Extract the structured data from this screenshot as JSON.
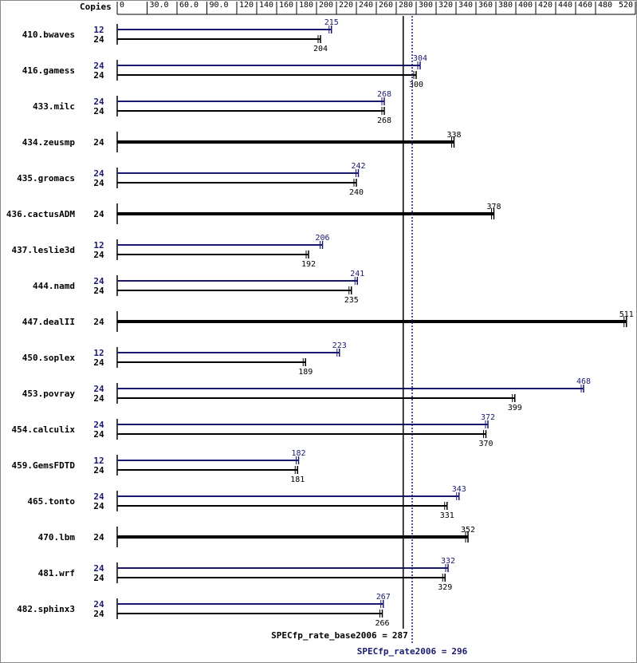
{
  "chart_data": {
    "type": "bar",
    "x_label": "Copies",
    "xlim": [
      0,
      520
    ],
    "xticks": [
      0,
      {
        "value": 30,
        "label": "30.0"
      },
      {
        "value": 60,
        "label": "60.0"
      },
      {
        "value": 90,
        "label": "90.0"
      },
      120,
      140,
      160,
      180,
      200,
      220,
      240,
      260,
      280,
      300,
      320,
      340,
      360,
      380,
      400,
      420,
      440,
      460,
      480,
      520
    ],
    "categories": [
      "410.bwaves",
      "416.gamess",
      "433.milc",
      "434.zeusmp",
      "435.gromacs",
      "436.cactusADM",
      "437.leslie3d",
      "444.namd",
      "447.dealII",
      "450.soplex",
      "453.povray",
      "454.calculix",
      "459.GemsFDTD",
      "465.tonto",
      "470.lbm",
      "481.wrf",
      "482.sphinx3"
    ],
    "series": [
      {
        "color": "#191970",
        "copies": [
          12,
          24,
          24,
          null,
          24,
          null,
          12,
          24,
          null,
          12,
          24,
          24,
          12,
          24,
          null,
          24,
          24
        ],
        "values": [
          215,
          304,
          268,
          null,
          242,
          null,
          206,
          241,
          null,
          223,
          468,
          372,
          182,
          343,
          null,
          332,
          267
        ]
      },
      {
        "color": "#000000",
        "copies": [
          24,
          24,
          24,
          24,
          24,
          24,
          24,
          24,
          24,
          24,
          24,
          24,
          24,
          24,
          24,
          24,
          24
        ],
        "values": [
          204,
          300,
          268,
          338,
          240,
          378,
          192,
          235,
          511,
          189,
          399,
          370,
          181,
          331,
          352,
          329,
          266
        ]
      }
    ],
    "reference_lines": [
      {
        "label": "SPECfp_rate_base2006 =",
        "value": 287,
        "color": "#000000",
        "style": "solid"
      },
      {
        "label": "SPECfp_rate2006 =",
        "value": 296,
        "color": "#191970",
        "style": "dotted"
      }
    ]
  }
}
